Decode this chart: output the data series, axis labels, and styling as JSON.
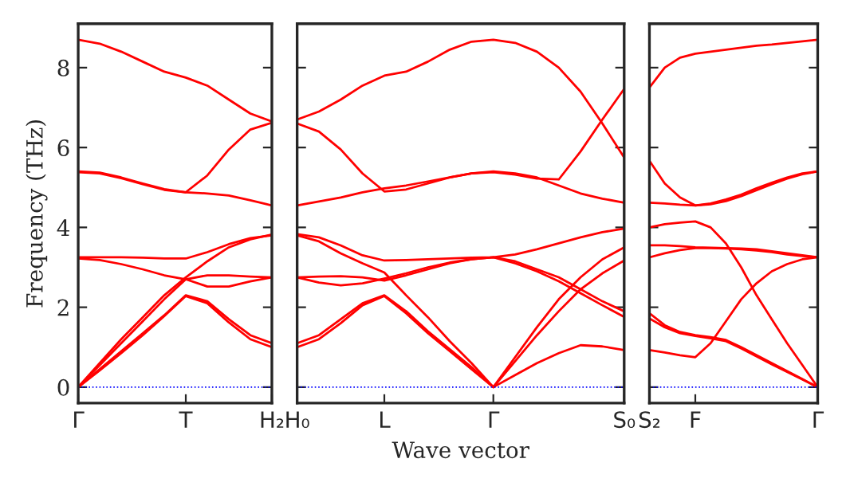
{
  "chart_data": [
    {
      "type": "line",
      "ylabel": "Frequency (THz)",
      "categories": [
        "Γ",
        null,
        null,
        null,
        null,
        "T",
        null,
        null,
        null,
        "H₂"
      ],
      "ylim": [
        -0.4,
        9.1
      ],
      "yticks": [
        0,
        2,
        4,
        6,
        8
      ],
      "grid": false,
      "ref_lines": [
        {
          "axis": "y",
          "value": 0,
          "color": "#0000ff",
          "line_style": "dotted"
        }
      ],
      "series": [
        {
          "color": "#ff0000",
          "values": [
            8.7,
            8.6,
            8.4,
            8.15,
            7.9,
            7.75,
            7.55,
            7.2,
            6.85,
            6.65
          ]
        },
        {
          "color": "#ff0000",
          "values": [
            5.4,
            5.37,
            5.25,
            5.1,
            4.96,
            4.88,
            4.85,
            4.8,
            4.68,
            4.55
          ]
        },
        {
          "color": "#ff0000",
          "values": [
            5.38,
            5.35,
            5.23,
            5.08,
            4.94,
            4.88,
            5.3,
            5.95,
            6.45,
            6.62
          ]
        },
        {
          "color": "#ff0000",
          "values": [
            3.25,
            3.25,
            3.25,
            3.24,
            3.22,
            3.22,
            3.38,
            3.58,
            3.73,
            3.8
          ]
        },
        {
          "color": "#ff0000",
          "values": [
            3.22,
            3.18,
            3.08,
            2.95,
            2.8,
            2.7,
            2.52,
            2.52,
            2.65,
            2.75
          ]
        },
        {
          "color": "#ff0000",
          "values": [
            0,
            0.6,
            1.2,
            1.75,
            2.3,
            2.75,
            3.15,
            3.5,
            3.7,
            3.82
          ]
        },
        {
          "color": "#ff0000",
          "values": [
            0,
            0.55,
            1.1,
            1.65,
            2.2,
            2.7,
            2.8,
            2.8,
            2.77,
            2.75
          ]
        },
        {
          "color": "#ff0000",
          "values": [
            0,
            0.45,
            0.9,
            1.35,
            1.8,
            2.3,
            2.15,
            1.7,
            1.3,
            1.1
          ]
        },
        {
          "color": "#ff0000",
          "values": [
            0,
            0.42,
            0.85,
            1.3,
            1.78,
            2.28,
            2.1,
            1.62,
            1.2,
            1.0
          ]
        }
      ]
    },
    {
      "type": "line",
      "xlabel": "Wave vector",
      "categories": [
        "H₀",
        null,
        null,
        null,
        "L",
        null,
        null,
        null,
        null,
        "Γ",
        null,
        null,
        null,
        null,
        null,
        "S₀"
      ],
      "ylim": [
        -0.4,
        9.1
      ],
      "yticks": [
        0,
        2,
        4,
        6,
        8
      ],
      "tick_labels": "x",
      "grid": false,
      "ref_lines": [
        {
          "axis": "y",
          "value": 0,
          "color": "#0000ff",
          "line_style": "dotted"
        }
      ],
      "series": [
        {
          "color": "#ff0000",
          "values": [
            6.7,
            6.9,
            7.2,
            7.55,
            7.8,
            7.9,
            8.15,
            8.45,
            8.65,
            8.7,
            8.62,
            8.4,
            8.0,
            7.4,
            6.6,
            5.75
          ]
        },
        {
          "color": "#ff0000",
          "values": [
            6.6,
            6.4,
            5.95,
            5.35,
            4.9,
            4.95,
            5.1,
            5.25,
            5.35,
            5.38,
            5.32,
            5.22,
            5.2,
            5.9,
            6.7,
            7.47
          ]
        },
        {
          "color": "#ff0000",
          "values": [
            4.55,
            4.65,
            4.75,
            4.88,
            4.98,
            5.05,
            5.15,
            5.25,
            5.35,
            5.4,
            5.35,
            5.25,
            5.05,
            4.85,
            4.72,
            4.62
          ]
        },
        {
          "color": "#ff0000",
          "values": [
            3.83,
            3.75,
            3.55,
            3.3,
            3.17,
            3.18,
            3.2,
            3.22,
            3.24,
            3.25,
            3.32,
            3.45,
            3.6,
            3.75,
            3.88,
            3.97
          ]
        },
        {
          "color": "#ff0000",
          "values": [
            3.8,
            3.65,
            3.35,
            3.1,
            2.87,
            2.3,
            1.75,
            1.15,
            0.6,
            0,
            0.75,
            1.5,
            2.2,
            2.75,
            3.2,
            3.5
          ]
        },
        {
          "color": "#ff0000",
          "values": [
            2.75,
            2.77,
            2.78,
            2.75,
            2.67,
            2.8,
            2.95,
            3.1,
            3.2,
            3.25,
            3.15,
            2.95,
            2.75,
            2.45,
            2.15,
            1.9
          ]
        },
        {
          "color": "#ff0000",
          "values": [
            2.75,
            2.62,
            2.55,
            2.6,
            2.72,
            2.85,
            3.0,
            3.12,
            3.2,
            3.25,
            3.1,
            2.9,
            2.65,
            2.35,
            2.05,
            1.76
          ]
        },
        {
          "color": "#ff0000",
          "values": [
            1.1,
            1.3,
            1.7,
            2.1,
            2.3,
            1.9,
            1.4,
            0.95,
            0.5,
            0,
            0.65,
            1.3,
            1.9,
            2.45,
            2.85,
            3.17
          ]
        },
        {
          "color": "#ff0000",
          "values": [
            1.0,
            1.2,
            1.6,
            2.05,
            2.28,
            1.85,
            1.35,
            0.9,
            0.45,
            0,
            0.3,
            0.6,
            0.85,
            1.05,
            1.02,
            0.93
          ]
        }
      ]
    },
    {
      "type": "line",
      "categories": [
        "S₂",
        null,
        null,
        "F",
        null,
        null,
        null,
        null,
        null,
        null,
        null,
        "Γ"
      ],
      "ylim": [
        -0.4,
        9.1
      ],
      "yticks": [
        0,
        2,
        4,
        6,
        8
      ],
      "tick_labels": "x",
      "grid": false,
      "ref_lines": [
        {
          "axis": "y",
          "value": 0,
          "color": "#0000ff",
          "line_style": "dotted"
        }
      ],
      "series": [
        {
          "color": "#ff0000",
          "values": [
            7.5,
            8.0,
            8.25,
            8.35,
            8.4,
            8.45,
            8.5,
            8.55,
            8.58,
            8.62,
            8.66,
            8.7
          ]
        },
        {
          "color": "#ff0000",
          "values": [
            5.67,
            5.1,
            4.75,
            4.55,
            4.6,
            4.7,
            4.82,
            4.98,
            5.12,
            5.25,
            5.35,
            5.4
          ]
        },
        {
          "color": "#ff0000",
          "values": [
            4.62,
            4.6,
            4.57,
            4.55,
            4.58,
            4.66,
            4.78,
            4.93,
            5.08,
            5.22,
            5.33,
            5.4
          ]
        },
        {
          "color": "#ff0000",
          "values": [
            4.0,
            4.08,
            4.12,
            4.15,
            4.0,
            3.6,
            3.0,
            2.3,
            1.7,
            1.1,
            0.55,
            0
          ]
        },
        {
          "color": "#ff0000",
          "values": [
            3.55,
            3.55,
            3.53,
            3.5,
            3.49,
            3.48,
            3.47,
            3.45,
            3.4,
            3.35,
            3.3,
            3.25
          ]
        },
        {
          "color": "#ff0000",
          "values": [
            3.25,
            3.35,
            3.43,
            3.48,
            3.48,
            3.47,
            3.45,
            3.42,
            3.38,
            3.32,
            3.28,
            3.25
          ]
        },
        {
          "color": "#ff0000",
          "values": [
            1.85,
            1.55,
            1.38,
            1.3,
            1.25,
            1.18,
            1.0,
            0.8,
            0.6,
            0.4,
            0.2,
            0
          ]
        },
        {
          "color": "#ff0000",
          "values": [
            1.72,
            1.5,
            1.35,
            1.28,
            1.22,
            1.15,
            0.97,
            0.77,
            0.57,
            0.38,
            0.19,
            0
          ]
        },
        {
          "color": "#ff0000",
          "values": [
            0.93,
            0.87,
            0.8,
            0.75,
            1.1,
            1.65,
            2.2,
            2.6,
            2.9,
            3.08,
            3.2,
            3.25
          ]
        }
      ]
    }
  ]
}
